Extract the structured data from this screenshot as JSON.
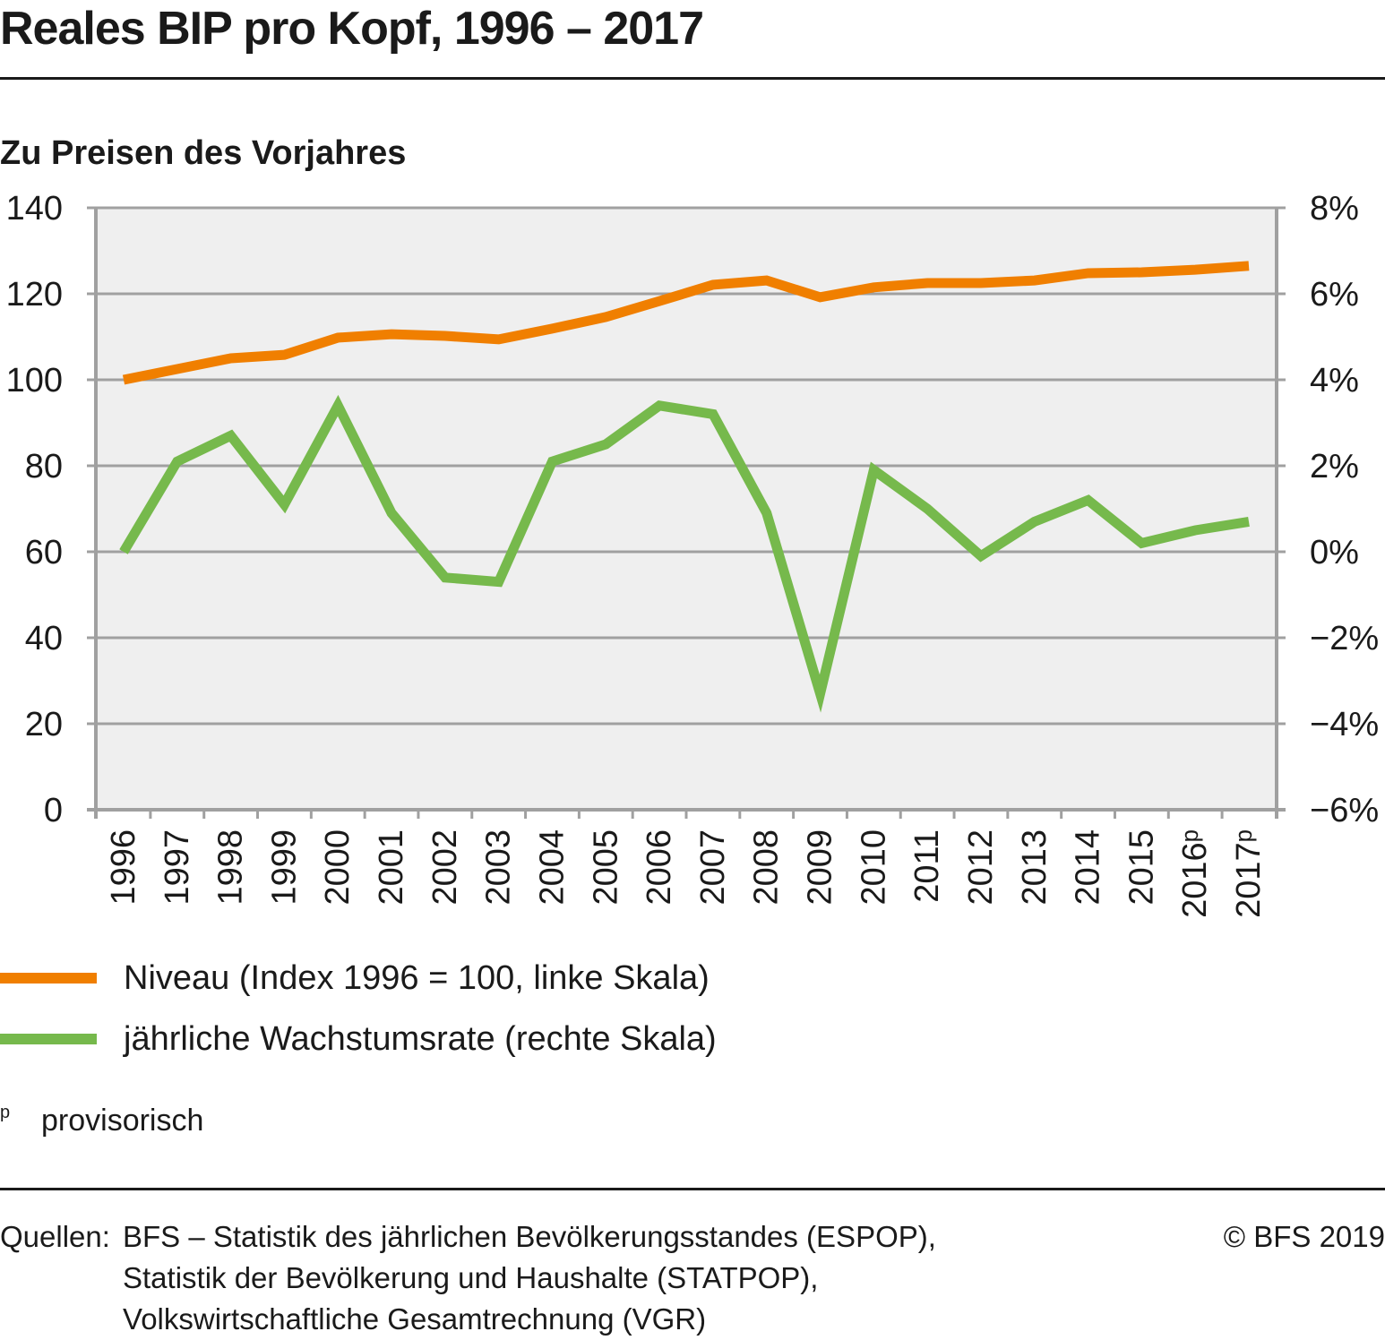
{
  "header": {
    "title": "Reales BIP pro Kopf, 1996 – 2017",
    "subtitle": "Zu Preisen des Vorjahres"
  },
  "colors": {
    "niveau": "#F07F00",
    "growth": "#76B94C",
    "plot_bg": "#EFEFEF",
    "grid": "#A0A0A0"
  },
  "chart_data": {
    "type": "line",
    "title": "Reales BIP pro Kopf, 1996 – 2017",
    "subtitle": "Zu Preisen des Vorjahres",
    "xlabel": "",
    "x": [
      "1996",
      "1997",
      "1998",
      "1999",
      "2000",
      "2001",
      "2002",
      "2003",
      "2004",
      "2005",
      "2006",
      "2007",
      "2008",
      "2009",
      "2010",
      "2011",
      "2012",
      "2013",
      "2014",
      "2015",
      "2016",
      "2017"
    ],
    "x_tick_labels": [
      "1996",
      "1997",
      "1998",
      "1999",
      "2000",
      "2001",
      "2002",
      "2003",
      "2004",
      "2005",
      "2006",
      "2007",
      "2008",
      "2009",
      "2010",
      "2011",
      "2012",
      "2013",
      "2014",
      "2015",
      "2016ᵖ",
      "2017ᵖ"
    ],
    "y_left": {
      "label": "Niveau (Index 1996=100)",
      "range": [
        0,
        140
      ],
      "ticks": [
        0,
        20,
        40,
        60,
        80,
        100,
        120,
        140
      ],
      "tick_labels": [
        "0",
        "20",
        "40",
        "60",
        "80",
        "100",
        "120",
        "140"
      ]
    },
    "y_right": {
      "label": "jährliche Wachstumsrate",
      "range": [
        -6,
        8
      ],
      "ticks": [
        -6,
        -4,
        -2,
        0,
        2,
        4,
        6,
        8
      ],
      "tick_labels": [
        "−6%",
        "−4%",
        "−2%",
        "0%",
        "2%",
        "4%",
        "6%",
        "8%"
      ]
    },
    "grid": true,
    "legend_position": "bottom-left",
    "series": [
      {
        "name": "Niveau (Index 1996 = 100, linke Skala)",
        "axis": "left",
        "color": "#F07F00",
        "values": [
          100.0,
          102.5,
          105.0,
          105.8,
          109.8,
          110.6,
          110.2,
          109.4,
          111.9,
          114.6,
          118.3,
          122.1,
          123.1,
          119.2,
          121.5,
          122.5,
          122.5,
          123.1,
          124.8,
          125.0,
          125.6,
          126.5
        ]
      },
      {
        "name": "jährliche Wachstumsrate (rechte Skala)",
        "axis": "right",
        "color": "#76B94C",
        "values": [
          0.0,
          2.1,
          2.7,
          1.1,
          3.4,
          0.9,
          -0.6,
          -0.7,
          2.1,
          2.5,
          3.4,
          3.2,
          0.9,
          -3.3,
          1.9,
          1.0,
          -0.1,
          0.7,
          1.2,
          0.2,
          0.5,
          0.7
        ]
      }
    ]
  },
  "legend": {
    "items": [
      {
        "label": "Niveau (Index 1996 = 100, linke Skala)"
      },
      {
        "label": "jährliche Wachstumsrate (rechte Skala)"
      }
    ]
  },
  "footnote": {
    "marker": "p",
    "text": "provisorisch"
  },
  "footer": {
    "sources_prefix": "Quellen:",
    "sources": [
      "BFS – Statistik des jährlichen Bevölkerungsstandes (ESPOP),",
      "Statistik der Bevölkerung und Haushalte (STATPOP),",
      "Volkswirtschaftliche Gesamtrechnung (VGR)"
    ],
    "copyright": "© BFS 2019"
  }
}
